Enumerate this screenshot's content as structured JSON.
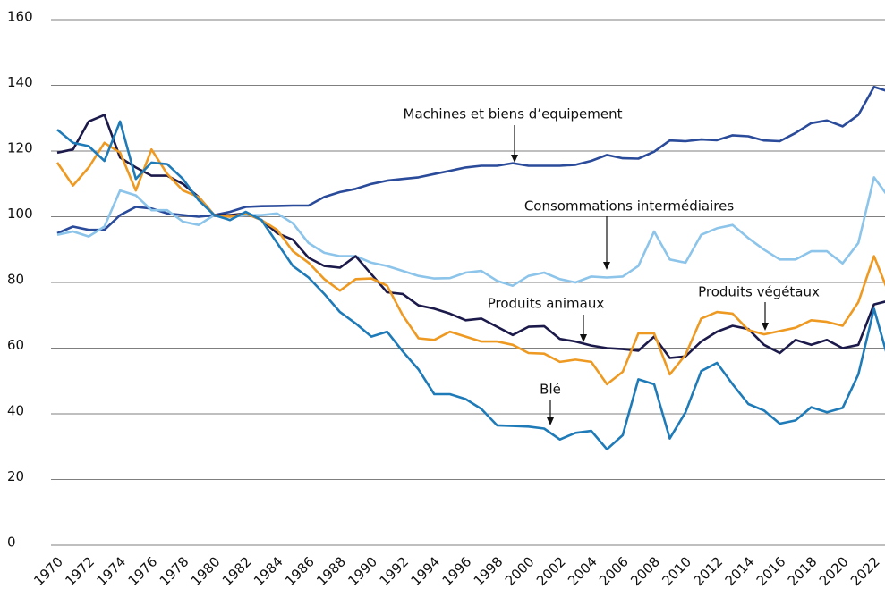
{
  "chart_data": {
    "type": "line",
    "x": [
      1970,
      1971,
      1972,
      1973,
      1974,
      1975,
      1976,
      1977,
      1978,
      1979,
      1980,
      1981,
      1982,
      1983,
      1984,
      1985,
      1986,
      1987,
      1988,
      1989,
      1990,
      1991,
      1992,
      1993,
      1994,
      1995,
      1996,
      1997,
      1998,
      1999,
      2000,
      2001,
      2002,
      2003,
      2004,
      2005,
      2006,
      2007,
      2008,
      2009,
      2010,
      2011,
      2012,
      2013,
      2014,
      2015,
      2016,
      2017,
      2018,
      2019,
      2020,
      2021,
      2022,
      2023
    ],
    "series": [
      {
        "name": "Machines et biens d’equipement",
        "color": "#2a4a9a",
        "values": [
          95,
          97,
          96,
          96,
          100.5,
          103,
          102.5,
          101,
          100.5,
          100,
          100.5,
          101.5,
          103,
          103.2,
          103.3,
          103.4,
          103.4,
          106,
          107.5,
          108.5,
          110,
          111,
          111.5,
          112,
          113,
          114,
          115,
          115.5,
          115.5,
          116.3,
          115.5,
          115.5,
          115.5,
          115.8,
          117,
          118.8,
          117.8,
          117.7,
          119.8,
          123.2,
          123,
          123.5,
          123.3,
          124.8,
          124.5,
          123.2,
          123,
          125.5,
          128.5,
          129.3,
          127.5,
          131,
          139.5,
          138
        ]
      },
      {
        "name": "Consommations intermédiaires",
        "color": "#8cc4ea",
        "values": [
          94.5,
          95.5,
          94,
          97,
          108,
          106.5,
          102,
          102,
          98.5,
          97.5,
          100.5,
          100,
          100.5,
          100.5,
          101,
          98,
          92,
          89,
          88,
          88,
          86,
          85,
          83.5,
          82,
          81.2,
          81.3,
          83,
          83.5,
          80.5,
          79,
          82,
          83,
          81,
          80,
          81.8,
          81.5,
          81.8,
          85,
          95.5,
          87,
          86,
          94.5,
          96.5,
          97.5,
          93.5,
          90,
          87,
          87,
          89.5,
          89.5,
          85.8,
          92,
          112,
          105.5
        ]
      },
      {
        "name": "Produits animaux",
        "color": "#1c1a4a",
        "values": [
          119.5,
          120.5,
          129,
          131,
          118,
          115,
          112.5,
          112.5,
          110,
          106,
          100.5,
          100.5,
          101,
          99,
          95,
          93,
          87.5,
          85,
          84.5,
          88,
          82.5,
          77,
          76.5,
          73,
          72,
          70.5,
          68.5,
          69,
          66.5,
          64,
          66.5,
          66.7,
          62.8,
          62,
          60.8,
          60,
          59.7,
          59.2,
          63.5,
          57,
          57.5,
          62,
          65,
          66.8,
          65.8,
          61,
          58.5,
          62.5,
          61,
          62.5,
          60,
          61,
          73.3,
          74.5
        ]
      },
      {
        "name": "Produits végétaux",
        "color": "#ee9a22",
        "values": [
          116.5,
          109.5,
          115,
          122.5,
          119.5,
          108,
          120.5,
          113,
          108,
          106,
          100.5,
          100,
          101,
          99,
          96,
          89.5,
          86,
          81,
          77.5,
          81,
          81.2,
          79,
          70,
          63,
          62.5,
          65,
          63.5,
          62,
          62,
          61,
          58.5,
          58.3,
          55.8,
          56.5,
          55.8,
          49,
          52.8,
          64.5,
          64.5,
          52,
          58,
          69,
          71,
          70.5,
          65.5,
          64.2,
          65.2,
          66.2,
          68.5,
          68,
          66.8,
          74,
          88,
          76
        ]
      },
      {
        "name": "Blé",
        "color": "#1f7bb8",
        "values": [
          126.5,
          122.5,
          121.5,
          117,
          129,
          111.5,
          116.5,
          116,
          111.5,
          105,
          100.5,
          99,
          101.5,
          99,
          92,
          85,
          81.5,
          76.5,
          71,
          67.5,
          63.5,
          65,
          59,
          53.5,
          46,
          46,
          44.5,
          41.5,
          36.5,
          36.3,
          36.1,
          35.5,
          32.2,
          34.2,
          34.8,
          29.2,
          33.5,
          50.5,
          49,
          32.5,
          40.5,
          53,
          55.5,
          49,
          43,
          41,
          37,
          38,
          42,
          40.5,
          41.8,
          52,
          72,
          55
        ]
      }
    ],
    "xlim": [
      1970,
      2022.7
    ],
    "xticks": [
      1970,
      1972,
      1974,
      1976,
      1978,
      1980,
      1982,
      1984,
      1986,
      1988,
      1990,
      1992,
      1994,
      1996,
      1998,
      2000,
      2002,
      2004,
      2006,
      2008,
      2010,
      2012,
      2014,
      2016,
      2018,
      2020,
      2022
    ],
    "ylim": [
      0,
      160
    ],
    "yticks": [
      0,
      20,
      40,
      60,
      80,
      100,
      120,
      140,
      160
    ],
    "grid": true
  }
}
